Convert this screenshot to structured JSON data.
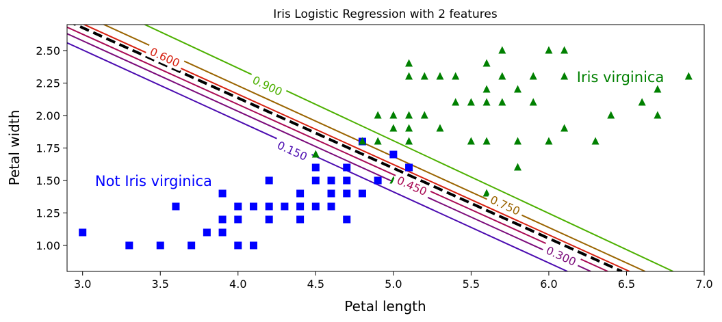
{
  "chart_data": {
    "type": "scatter",
    "title": "Iris Logistic Regression with 2 features",
    "xlabel": "Petal length",
    "ylabel": "Petal width",
    "xlim": [
      2.9,
      7.0
    ],
    "ylim": [
      0.8,
      2.7
    ],
    "xticks": [
      "3.0",
      "3.5",
      "4.0",
      "4.5",
      "5.0",
      "5.5",
      "6.0",
      "6.5",
      "7.0"
    ],
    "yticks": [
      "1.00",
      "1.25",
      "1.50",
      "1.75",
      "2.00",
      "2.25",
      "2.50"
    ],
    "grid": false,
    "annotations": [
      {
        "text": "Not Iris virginica",
        "x": 3.08,
        "y": 1.5,
        "color": "#0000ff"
      },
      {
        "text": "Iris virginica",
        "x": 6.18,
        "y": 2.3,
        "color": "#008000"
      }
    ],
    "series": [
      {
        "marker": "square",
        "color": "#0000ff",
        "points": [
          [
            3.0,
            1.1
          ],
          [
            3.3,
            1.0
          ],
          [
            3.5,
            1.0
          ],
          [
            3.6,
            1.3
          ],
          [
            3.7,
            1.0
          ],
          [
            3.8,
            1.1
          ],
          [
            3.9,
            1.1
          ],
          [
            3.9,
            1.2
          ],
          [
            3.9,
            1.4
          ],
          [
            4.0,
            1.0
          ],
          [
            4.0,
            1.2
          ],
          [
            4.0,
            1.3
          ],
          [
            4.1,
            1.0
          ],
          [
            4.1,
            1.3
          ],
          [
            4.2,
            1.2
          ],
          [
            4.2,
            1.3
          ],
          [
            4.2,
            1.5
          ],
          [
            4.3,
            1.3
          ],
          [
            4.4,
            1.2
          ],
          [
            4.4,
            1.3
          ],
          [
            4.4,
            1.4
          ],
          [
            4.5,
            1.3
          ],
          [
            4.5,
            1.5
          ],
          [
            4.5,
            1.6
          ],
          [
            4.6,
            1.3
          ],
          [
            4.6,
            1.4
          ],
          [
            4.6,
            1.5
          ],
          [
            4.7,
            1.2
          ],
          [
            4.7,
            1.4
          ],
          [
            4.7,
            1.5
          ],
          [
            4.7,
            1.6
          ],
          [
            4.8,
            1.4
          ],
          [
            4.8,
            1.8
          ],
          [
            4.9,
            1.5
          ],
          [
            5.0,
            1.7
          ],
          [
            5.1,
            1.6
          ]
        ]
      },
      {
        "marker": "triangle",
        "color": "#008000",
        "points": [
          [
            4.5,
            1.7
          ],
          [
            4.8,
            1.8
          ],
          [
            4.9,
            1.8
          ],
          [
            4.9,
            2.0
          ],
          [
            5.0,
            1.5
          ],
          [
            5.0,
            1.9
          ],
          [
            5.0,
            2.0
          ],
          [
            5.1,
            1.5
          ],
          [
            5.1,
            1.8
          ],
          [
            5.1,
            1.9
          ],
          [
            5.1,
            2.0
          ],
          [
            5.1,
            2.3
          ],
          [
            5.1,
            2.4
          ],
          [
            5.2,
            2.0
          ],
          [
            5.2,
            2.3
          ],
          [
            5.3,
            1.9
          ],
          [
            5.3,
            2.3
          ],
          [
            5.4,
            2.1
          ],
          [
            5.4,
            2.3
          ],
          [
            5.5,
            1.8
          ],
          [
            5.5,
            2.1
          ],
          [
            5.6,
            1.4
          ],
          [
            5.6,
            1.8
          ],
          [
            5.6,
            2.1
          ],
          [
            5.6,
            2.2
          ],
          [
            5.6,
            2.4
          ],
          [
            5.7,
            2.1
          ],
          [
            5.7,
            2.3
          ],
          [
            5.7,
            2.5
          ],
          [
            5.8,
            1.6
          ],
          [
            5.8,
            1.8
          ],
          [
            5.8,
            2.2
          ],
          [
            5.9,
            2.1
          ],
          [
            5.9,
            2.3
          ],
          [
            6.0,
            1.8
          ],
          [
            6.0,
            2.5
          ],
          [
            6.1,
            1.9
          ],
          [
            6.1,
            2.3
          ],
          [
            6.1,
            2.5
          ],
          [
            6.3,
            1.8
          ],
          [
            6.4,
            2.0
          ],
          [
            6.6,
            2.1
          ],
          [
            6.7,
            2.0
          ],
          [
            6.7,
            2.2
          ],
          [
            6.9,
            2.3
          ]
        ]
      }
    ],
    "decision_boundary": {
      "style": "dashed",
      "color": "#000000",
      "points": [
        [
          2.9,
          2.73
        ],
        [
          6.47,
          0.8
        ]
      ]
    },
    "contours": [
      {
        "label": "0.150",
        "color": "#4b0bb0",
        "points": [
          [
            2.9,
            2.56
          ],
          [
            6.12,
            0.8
          ]
        ],
        "label_at": [
          4.35,
          1.73
        ]
      },
      {
        "label": "0.300",
        "color": "#7a0a7a",
        "points": [
          [
            2.9,
            2.63
          ],
          [
            6.27,
            0.8
          ]
        ],
        "label_at": [
          6.08,
          0.92
        ]
      },
      {
        "label": "0.450",
        "color": "#a80a54",
        "points": [
          [
            2.9,
            2.68
          ],
          [
            6.38,
            0.8
          ]
        ],
        "label_at": [
          5.12,
          1.46
        ]
      },
      {
        "label": "0.600",
        "color": "#d62010",
        "points": [
          [
            2.9,
            2.76
          ],
          [
            6.52,
            0.8
          ]
        ],
        "label_at": [
          3.53,
          2.45
        ]
      },
      {
        "label": "0.750",
        "color": "#9a6400",
        "points": [
          [
            2.9,
            2.83
          ],
          [
            6.62,
            0.8
          ]
        ],
        "label_at": [
          5.72,
          1.31
        ]
      },
      {
        "label": "0.900",
        "color": "#4cb000",
        "points": [
          [
            2.9,
            2.98
          ],
          [
            6.8,
            0.8
          ]
        ],
        "label_at": [
          4.19,
          2.23
        ]
      }
    ]
  }
}
